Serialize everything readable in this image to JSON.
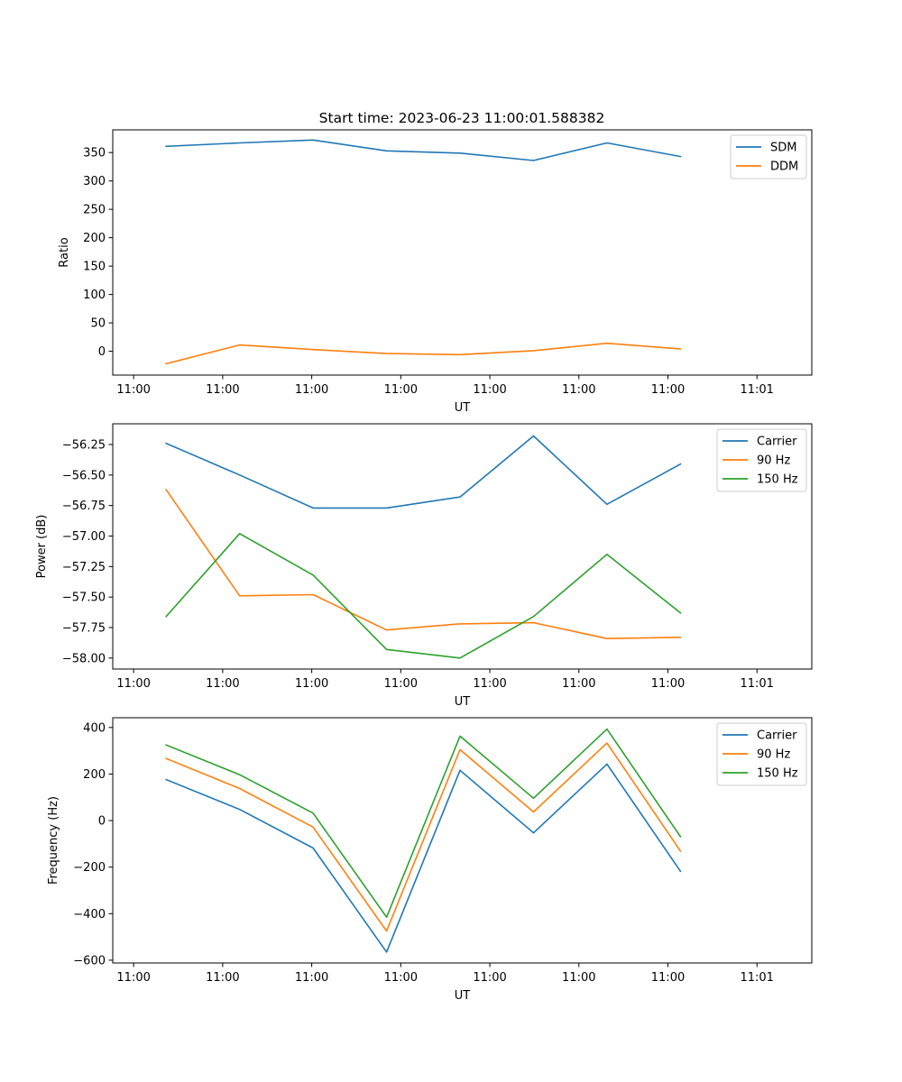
{
  "figure_title": "Start time: 2023-06-23 11:00:01.588382",
  "colors": {
    "blue": "#1f77b4",
    "orange": "#ff7f0e",
    "green": "#2ca02c"
  },
  "chart_data": [
    {
      "type": "line",
      "title": "Start time: 2023-06-23 11:00:01.588382",
      "xlabel": "UT",
      "ylabel": "Ratio",
      "x_tick_labels": [
        "11:00",
        "11:00",
        "11:00",
        "11:00",
        "11:00",
        "11:00",
        "11:00",
        "11:01"
      ],
      "x_index": [
        1,
        2,
        3,
        4,
        5,
        6,
        7,
        8
      ],
      "ylim": [
        -42,
        390
      ],
      "yticks": [
        0,
        50,
        100,
        150,
        200,
        250,
        300,
        350
      ],
      "ytick_labels": [
        "0",
        "50",
        "100",
        "150",
        "200",
        "250",
        "300",
        "350"
      ],
      "legend_position": "top-right",
      "grid": false,
      "series": [
        {
          "name": "SDM",
          "color": "#1f77b4",
          "values": [
            361,
            367,
            372,
            353,
            349,
            336,
            367,
            343
          ]
        },
        {
          "name": "DDM",
          "color": "#ff7f0e",
          "values": [
            -22,
            11,
            3,
            -4,
            -6,
            1,
            14,
            4
          ]
        }
      ]
    },
    {
      "type": "line",
      "title": "",
      "xlabel": "UT",
      "ylabel": "Power (dB)",
      "x_tick_labels": [
        "11:00",
        "11:00",
        "11:00",
        "11:00",
        "11:00",
        "11:00",
        "11:00",
        "11:01"
      ],
      "x_index": [
        1,
        2,
        3,
        4,
        5,
        6,
        7,
        8
      ],
      "ylim": [
        -58.09,
        -56.08
      ],
      "yticks": [
        -56.25,
        -56.5,
        -56.75,
        -57.0,
        -57.25,
        -57.5,
        -57.75,
        -58.0
      ],
      "ytick_labels": [
        "−56.25",
        "−56.50",
        "−56.75",
        "−57.00",
        "−57.25",
        "−57.50",
        "−57.75",
        "−58.00"
      ],
      "legend_position": "top-right",
      "grid": false,
      "series": [
        {
          "name": "Carrier",
          "color": "#1f77b4",
          "values": [
            -56.24,
            -56.5,
            -56.77,
            -56.77,
            -56.68,
            -56.18,
            -56.74,
            -56.41
          ]
        },
        {
          "name": "90 Hz",
          "color": "#ff7f0e",
          "values": [
            -56.62,
            -57.49,
            -57.48,
            -57.77,
            -57.72,
            -57.71,
            -57.84,
            -57.83
          ]
        },
        {
          "name": "150 Hz",
          "color": "#2ca02c",
          "values": [
            -57.66,
            -56.98,
            -57.32,
            -57.93,
            -58.0,
            -57.66,
            -57.15,
            -57.63
          ]
        }
      ]
    },
    {
      "type": "line",
      "title": "",
      "xlabel": "UT",
      "ylabel": "Frequency (Hz)",
      "x_tick_labels": [
        "11:00",
        "11:00",
        "11:00",
        "11:00",
        "11:00",
        "11:00",
        "11:00",
        "11:01"
      ],
      "x_index": [
        1,
        2,
        3,
        4,
        5,
        6,
        7,
        8
      ],
      "ylim": [
        -612,
        442
      ],
      "yticks": [
        400,
        200,
        0,
        -200,
        -400,
        -600
      ],
      "ytick_labels": [
        "400",
        "200",
        "0",
        "−200",
        "−400",
        "−600"
      ],
      "legend_position": "top-right",
      "grid": false,
      "series": [
        {
          "name": "Carrier",
          "color": "#1f77b4",
          "values": [
            176,
            48,
            -118,
            -565,
            216,
            -53,
            243,
            -218
          ]
        },
        {
          "name": "90 Hz",
          "color": "#ff7f0e",
          "values": [
            267,
            138,
            -28,
            -475,
            305,
            37,
            333,
            -131
          ]
        },
        {
          "name": "150 Hz",
          "color": "#2ca02c",
          "values": [
            325,
            197,
            32,
            -415,
            363,
            96,
            393,
            -69
          ]
        }
      ]
    }
  ]
}
